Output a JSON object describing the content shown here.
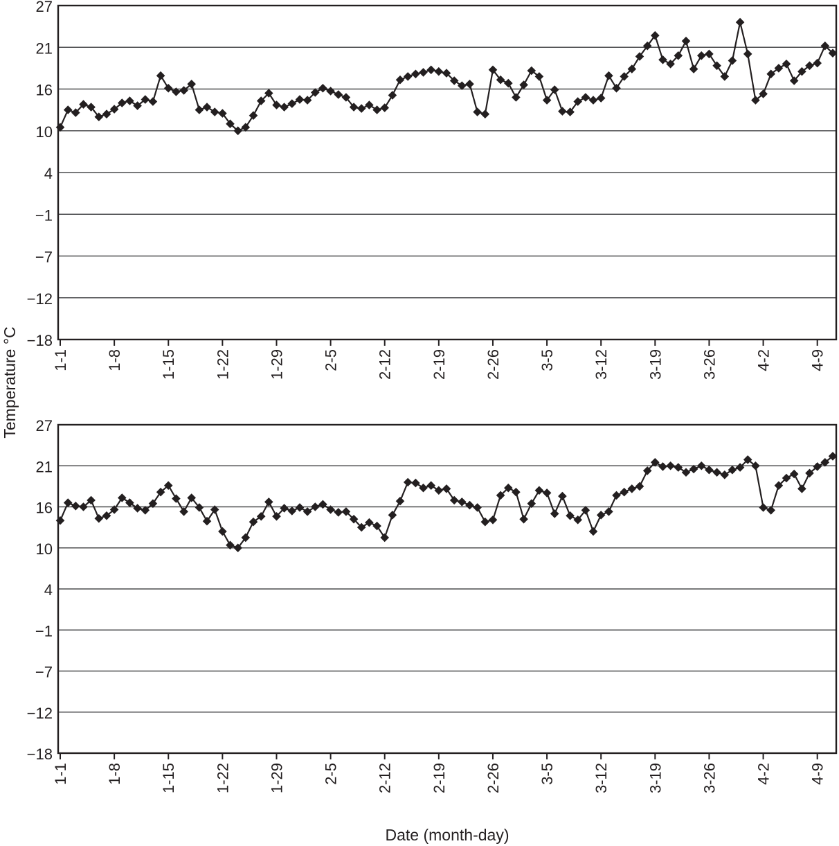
{
  "figure": {
    "background_color": "#ffffff",
    "series_color": "#231f20",
    "gridline_color": "#4c4d4f",
    "frame_color": "#231f20",
    "marker_shape": "diamond"
  },
  "axes": {
    "y": {
      "title": "Temperature °C",
      "tick_labels": [
        "27",
        "21",
        "16",
        "10",
        "4",
        "−1",
        "−7",
        "−12",
        "−18"
      ],
      "tick_values": [
        27,
        21,
        16,
        10,
        4,
        -1,
        -7,
        -12,
        -18
      ],
      "range_top": 27,
      "range_bottom": -18
    },
    "x": {
      "title": "Date (month-day)",
      "tick_labels": [
        "1-1",
        "1-8",
        "1-15",
        "1-22",
        "1-29",
        "2-5",
        "2-12",
        "2-19",
        "2-26",
        "3-5",
        "3-12",
        "3-19",
        "3-26",
        "4-2",
        "4-9"
      ],
      "tick_day_indices": [
        0,
        7,
        14,
        21,
        28,
        35,
        42,
        49,
        56,
        63,
        70,
        77,
        84,
        91,
        98
      ],
      "label_rotation_deg": -90
    }
  },
  "chart_data": [
    {
      "type": "line",
      "name": "upper-temperature-series",
      "position": "upper",
      "x_start": "1-1",
      "x_step_days": 1,
      "grid": "horizontal",
      "legend_position": "none",
      "ylim": [
        -18,
        27
      ],
      "values": [
        10.5,
        13.0,
        12.6,
        13.8,
        13.4,
        12.0,
        12.4,
        13.1,
        14.0,
        14.3,
        13.6,
        14.5,
        14.2,
        17.6,
        16.1,
        15.6,
        15.8,
        16.6,
        13.0,
        13.4,
        12.7,
        12.5,
        11.0,
        10.0,
        10.5,
        12.2,
        14.3,
        15.4,
        13.7,
        13.4,
        13.9,
        14.5,
        14.4,
        15.5,
        16.1,
        15.7,
        15.2,
        14.8,
        13.4,
        13.2,
        13.7,
        13.0,
        13.3,
        15.1,
        17.1,
        17.5,
        17.8,
        18.0,
        18.3,
        18.1,
        17.9,
        17.0,
        16.4,
        16.6,
        12.7,
        12.4,
        18.3,
        17.1,
        16.7,
        14.8,
        16.5,
        18.2,
        17.5,
        14.4,
        15.9,
        12.8,
        12.7,
        14.2,
        14.8,
        14.4,
        14.7,
        17.6,
        16.1,
        17.5,
        18.4,
        19.9,
        21.2,
        22.7,
        19.5,
        19.0,
        20.0,
        21.9,
        18.4,
        20.0,
        20.2,
        18.8,
        17.5,
        19.4,
        24.6,
        20.2,
        14.4,
        15.3,
        17.8,
        18.5,
        19.0,
        17.0,
        18.1,
        18.8,
        19.1,
        21.2,
        20.3
      ]
    },
    {
      "type": "line",
      "name": "lower-temperature-series",
      "position": "lower",
      "x_start": "1-1",
      "x_step_days": 1,
      "grid": "horizontal",
      "legend_position": "none",
      "ylim": [
        -18,
        27
      ],
      "values": [
        14.0,
        16.5,
        16.1,
        16.0,
        16.8,
        14.3,
        14.7,
        15.6,
        17.1,
        16.5,
        15.8,
        15.5,
        16.4,
        17.8,
        18.6,
        17.0,
        15.3,
        17.1,
        15.9,
        13.9,
        15.6,
        12.4,
        10.4,
        10.0,
        11.5,
        13.8,
        14.6,
        16.6,
        14.6,
        15.8,
        15.4,
        15.9,
        15.3,
        16.0,
        16.3,
        15.6,
        15.2,
        15.3,
        14.2,
        13.0,
        13.7,
        13.2,
        11.5,
        14.8,
        16.7,
        19.0,
        18.9,
        18.3,
        18.6,
        18.0,
        18.2,
        16.8,
        16.6,
        16.2,
        15.9,
        13.8,
        14.1,
        17.4,
        18.3,
        17.8,
        14.2,
        16.4,
        18.0,
        17.7,
        15.0,
        17.3,
        14.7,
        14.1,
        15.5,
        12.4,
        14.8,
        15.3,
        17.4,
        17.8,
        18.2,
        18.5,
        20.4,
        21.5,
        20.9,
        21.0,
        20.8,
        20.2,
        20.6,
        21.0,
        20.5,
        20.2,
        19.9,
        20.5,
        20.8,
        21.9,
        21.0,
        15.9,
        15.5,
        18.6,
        19.5,
        20.0,
        18.2,
        20.1,
        20.9,
        21.5,
        22.4
      ]
    }
  ]
}
